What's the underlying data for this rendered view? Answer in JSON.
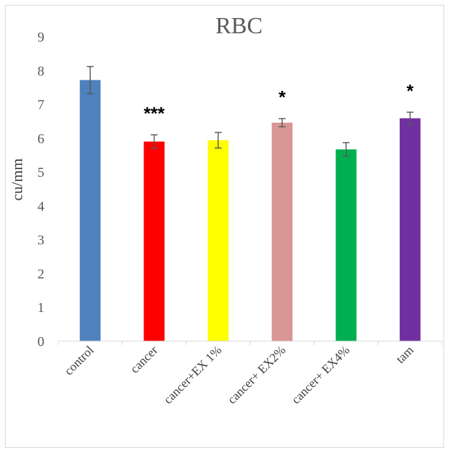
{
  "chart_data": {
    "type": "bar",
    "title": "RBC",
    "xlabel": "",
    "ylabel": "cu/mm",
    "ylim": [
      0,
      9
    ],
    "yticks": [
      "0",
      "1",
      "2",
      "3",
      "4",
      "5",
      "6",
      "7",
      "8",
      "9"
    ],
    "categories": [
      "control",
      "cancer",
      "cancer+EX 1%",
      "cancer+ EX2%",
      "cancer+ EX4%",
      "tam"
    ],
    "values": [
      7.72,
      5.9,
      5.94,
      6.46,
      5.67,
      6.59
    ],
    "errors": [
      0.4,
      0.2,
      0.23,
      0.12,
      0.2,
      0.18
    ],
    "colors": [
      "#4f81bd",
      "#ff0000",
      "#ffff00",
      "#d99694",
      "#00b050",
      "#7030a0"
    ],
    "significance": [
      "",
      "***",
      "",
      "*",
      "",
      "*"
    ],
    "grid": false,
    "legend": "none"
  }
}
